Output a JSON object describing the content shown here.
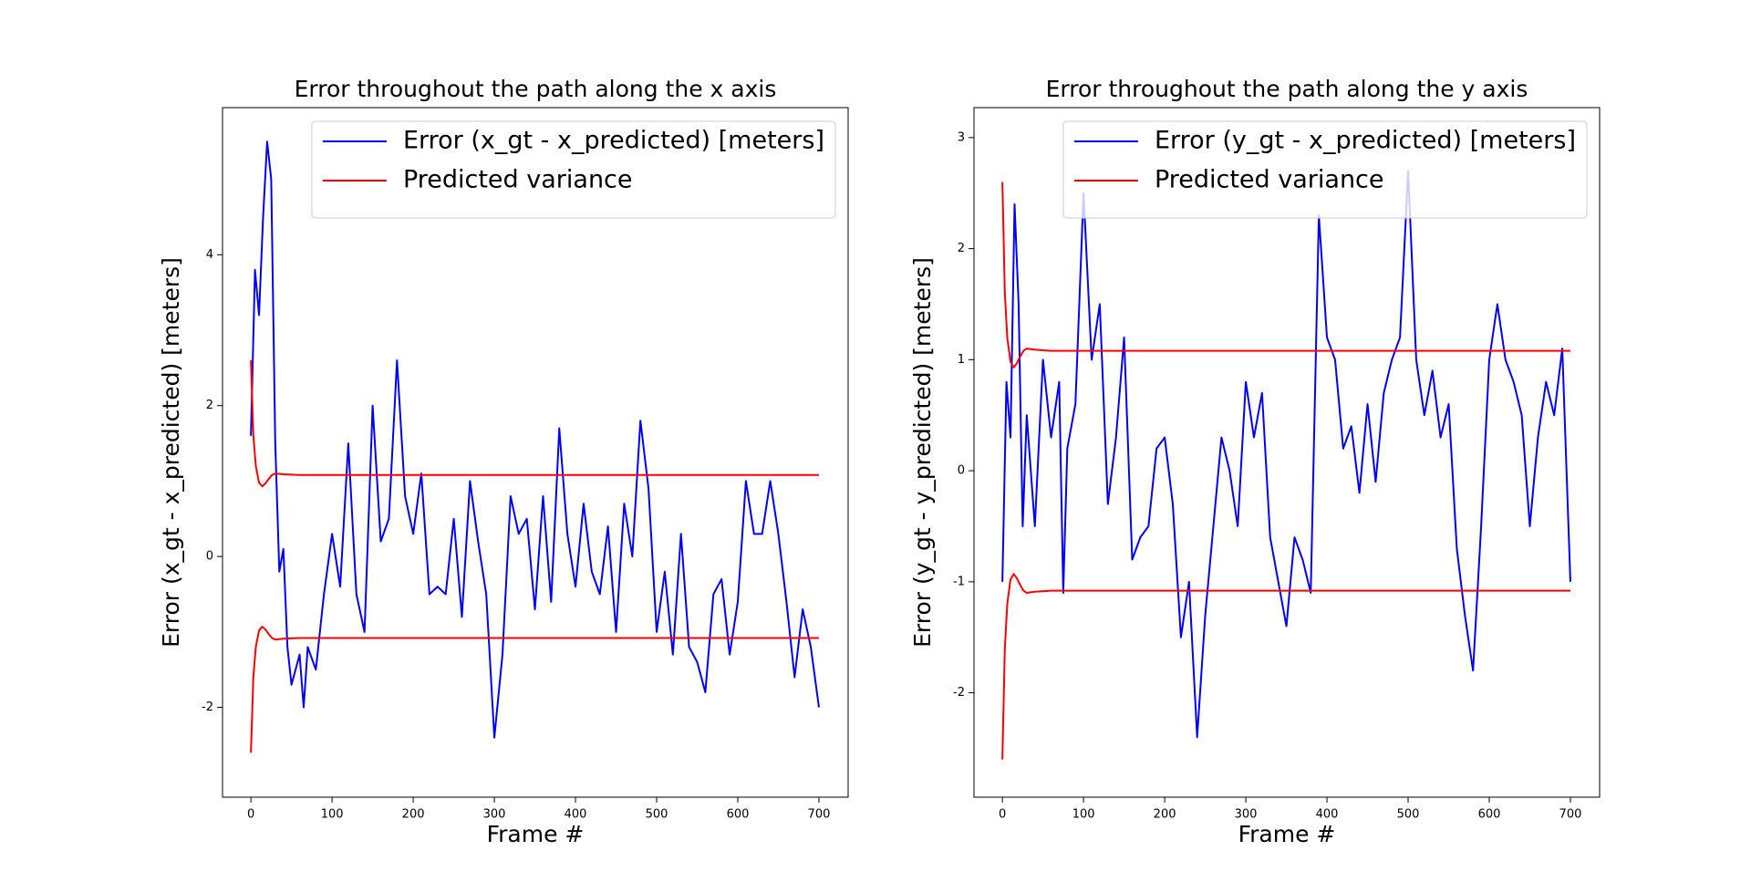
{
  "chart_data": [
    {
      "type": "line",
      "title": "Error throughout the path along the x axis",
      "xlabel": "Frame #",
      "ylabel": "Error (x_gt - x_predicted) [meters]",
      "xlim": [
        -35,
        736
      ],
      "xticks": [
        0,
        100,
        200,
        300,
        400,
        500,
        600,
        700
      ],
      "ylim": [
        -3.19,
        5.95
      ],
      "yticks": [
        -2,
        0,
        2,
        4
      ],
      "legend": "upper right",
      "series": [
        {
          "name": "Error (x_gt - x_predicted) [meters]",
          "color": "#0000ff",
          "x": [
            0,
            5,
            10,
            15,
            20,
            25,
            30,
            35,
            40,
            45,
            50,
            55,
            60,
            65,
            70,
            80,
            90,
            100,
            110,
            120,
            130,
            140,
            150,
            160,
            170,
            180,
            190,
            200,
            210,
            220,
            230,
            240,
            250,
            260,
            270,
            280,
            290,
            300,
            310,
            320,
            330,
            340,
            350,
            360,
            370,
            380,
            390,
            400,
            410,
            420,
            430,
            440,
            450,
            460,
            470,
            480,
            490,
            500,
            510,
            520,
            530,
            540,
            550,
            560,
            570,
            580,
            590,
            600,
            610,
            620,
            630,
            640,
            650,
            660,
            670,
            680,
            690,
            700
          ],
          "values": [
            1.6,
            3.8,
            3.2,
            4.5,
            5.5,
            5.0,
            1.5,
            -0.2,
            0.1,
            -1.2,
            -1.7,
            -1.5,
            -1.3,
            -2.0,
            -1.2,
            -1.5,
            -0.5,
            0.3,
            -0.4,
            1.5,
            -0.5,
            -1.0,
            2.0,
            0.2,
            0.5,
            2.6,
            0.8,
            0.3,
            1.1,
            -0.5,
            -0.4,
            -0.5,
            0.5,
            -0.8,
            1.0,
            0.2,
            -0.5,
            -2.4,
            -1.3,
            0.8,
            0.3,
            0.5,
            -0.7,
            0.8,
            -0.6,
            1.7,
            0.3,
            -0.4,
            0.7,
            -0.2,
            -0.5,
            0.4,
            -1.0,
            0.7,
            0.0,
            1.8,
            0.9,
            -1.0,
            -0.2,
            -1.3,
            0.3,
            -1.2,
            -1.4,
            -1.8,
            -0.5,
            -0.3,
            -1.3,
            -0.6,
            1.0,
            0.3,
            0.3,
            1.0,
            0.3,
            -0.6,
            -1.6,
            -0.7,
            -1.2,
            -2.0
          ]
        },
        {
          "name": "Predicted variance",
          "color": "#ff0000",
          "x": [
            0,
            3,
            6,
            10,
            14,
            18,
            22,
            26,
            30,
            40,
            60,
            100,
            700
          ],
          "values": [
            2.6,
            1.6,
            1.2,
            0.98,
            0.93,
            0.97,
            1.03,
            1.08,
            1.1,
            1.09,
            1.08,
            1.08,
            1.08
          ],
          "lower_values": [
            -2.6,
            -1.6,
            -1.2,
            -0.98,
            -0.93,
            -0.97,
            -1.03,
            -1.08,
            -1.1,
            -1.09,
            -1.08,
            -1.08,
            -1.08
          ]
        }
      ]
    },
    {
      "type": "line",
      "title": "Error throughout the path along the y axis",
      "xlabel": "Frame #",
      "ylabel": "Error (y_gt - y_predicted) [meters]",
      "xlim": [
        -35,
        736
      ],
      "xticks": [
        0,
        100,
        200,
        300,
        400,
        500,
        600,
        700
      ],
      "ylim": [
        -2.94,
        3.27
      ],
      "yticks": [
        -2,
        -1,
        0,
        1,
        2,
        3
      ],
      "legend": "upper right",
      "series": [
        {
          "name": "Error (y_gt - x_predicted) [meters]",
          "color": "#0000ff",
          "x": [
            0,
            5,
            10,
            15,
            20,
            25,
            30,
            40,
            50,
            60,
            70,
            75,
            80,
            90,
            100,
            110,
            120,
            130,
            140,
            150,
            160,
            170,
            180,
            190,
            200,
            210,
            220,
            230,
            240,
            250,
            260,
            270,
            280,
            290,
            300,
            310,
            320,
            330,
            340,
            350,
            360,
            370,
            380,
            390,
            400,
            410,
            420,
            430,
            440,
            450,
            460,
            470,
            480,
            490,
            500,
            510,
            520,
            530,
            540,
            550,
            560,
            570,
            580,
            590,
            600,
            610,
            620,
            630,
            640,
            650,
            660,
            670,
            680,
            690,
            700
          ],
          "values": [
            -1.0,
            0.8,
            0.3,
            2.4,
            1.5,
            -0.5,
            0.5,
            -0.5,
            1.0,
            0.3,
            0.8,
            -1.1,
            0.2,
            0.6,
            2.5,
            1.0,
            1.5,
            -0.3,
            0.3,
            1.2,
            -0.8,
            -0.6,
            -0.5,
            0.2,
            0.3,
            -0.3,
            -1.5,
            -1.0,
            -2.4,
            -1.3,
            -0.5,
            0.3,
            0.0,
            -0.5,
            0.8,
            0.3,
            0.7,
            -0.6,
            -1.0,
            -1.4,
            -0.6,
            -0.8,
            -1.1,
            2.3,
            1.2,
            1.0,
            0.2,
            0.4,
            -0.2,
            0.6,
            -0.1,
            0.7,
            1.0,
            1.2,
            2.7,
            1.0,
            0.5,
            0.9,
            0.3,
            0.6,
            -0.7,
            -1.3,
            -1.8,
            -0.5,
            1.0,
            1.5,
            1.0,
            0.8,
            0.5,
            -0.5,
            0.3,
            0.8,
            0.5,
            1.1,
            -1.0
          ]
        },
        {
          "name": "Predicted variance",
          "color": "#ff0000",
          "x": [
            0,
            3,
            6,
            10,
            14,
            18,
            22,
            26,
            30,
            40,
            60,
            100,
            700
          ],
          "values": [
            2.6,
            1.6,
            1.2,
            0.98,
            0.93,
            0.97,
            1.03,
            1.08,
            1.1,
            1.09,
            1.08,
            1.08,
            1.08
          ],
          "lower_values": [
            -2.6,
            -1.6,
            -1.2,
            -0.98,
            -0.93,
            -0.97,
            -1.03,
            -1.08,
            -1.1,
            -1.09,
            -1.08,
            -1.08,
            -1.08
          ]
        }
      ]
    }
  ]
}
